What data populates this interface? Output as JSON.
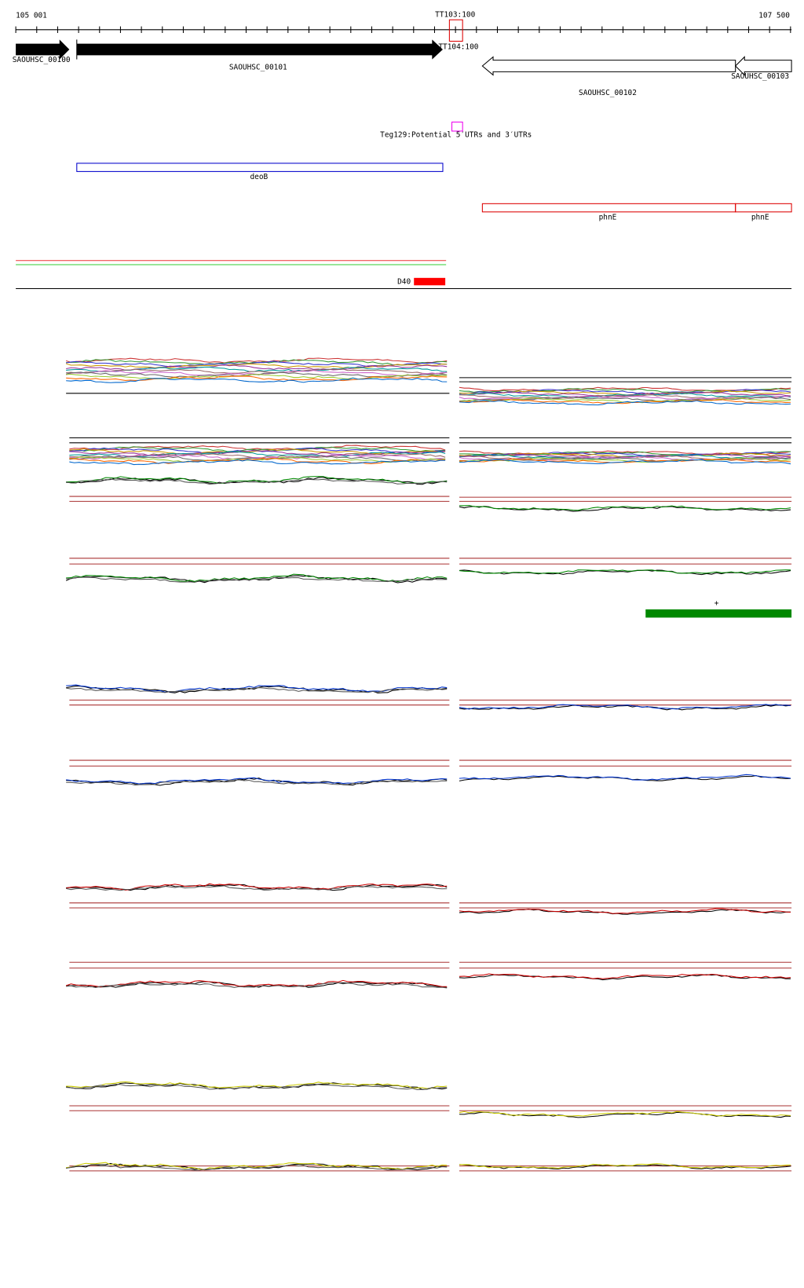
{
  "ruler": {
    "start": "105 001",
    "end": "107 500",
    "marker_top": "TT103:100",
    "marker_bottom": "TT104:100"
  },
  "genes": [
    "SAOUHSC_00100",
    "SAOUHSC_00101",
    "SAOUHSC_00102",
    "SAOUHSC_00103"
  ],
  "utr_track": {
    "label": "Teg129:Potential 5′UTRs and 3′UTRs"
  },
  "operons": [
    "deoB",
    "phnE",
    "phnE"
  ],
  "feature": {
    "label": "D40"
  },
  "strand_track": {
    "label": "+"
  }
}
